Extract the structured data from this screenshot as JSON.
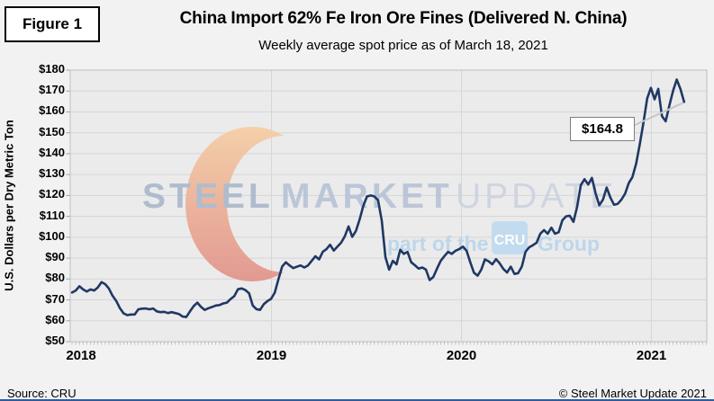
{
  "figure_label": "Figure 1",
  "header": {
    "title": "China Import 62% Fe Iron Ore Fines (Delivered N. China)",
    "subtitle": "Weekly average spot price as of March 18, 2021"
  },
  "annotation": {
    "label": "$164.8"
  },
  "watermark": {
    "steel": "STEEL",
    "market": "MARKET",
    "update": "UPDATE",
    "part_of_the": "part of the",
    "cru": "CRU",
    "group": "Group"
  },
  "footer": {
    "source": "Source: CRU",
    "copyright": "© Steel Market Update 2021"
  },
  "colors": {
    "page_bg": "#F2F2F2",
    "plot_bg": "#EBEBEB",
    "grid": "#D6D6D6",
    "plot_border": "#BFBFBF",
    "line": "#1F3864",
    "y_tick_marks": "#8FA5C6",
    "x_tick_marks": "#A9B6C6",
    "leader": "#C6C6C6",
    "annotation_border": "#7F7F7F",
    "crescent_top": "#F6CFA3",
    "crescent_bottom": "#E18E87",
    "wm_steel": "#A9B7CB",
    "wm_market": "#B6C2D6",
    "wm_update": "#CBD3DF",
    "wm_blue": "#B9D4EC",
    "cru_box": "#BFDAF0",
    "bottom_bar": "#2E5B9E"
  },
  "chart_data": {
    "type": "line",
    "title": "China Import 62% Fe Iron Ore Fines (Delivered N. China)",
    "subtitle": "Weekly average spot price as of March 18, 2021",
    "ylabel": "U.S. Dollars per Dry Metric Ton",
    "xlabel": "",
    "ylim": [
      50,
      180
    ],
    "y_tick_step": 10,
    "y_tick_prefix": "$",
    "y_tick_labels": [
      "$180",
      "$170",
      "$160",
      "$150",
      "$140",
      "$130",
      "$120",
      "$110",
      "$100",
      "$90",
      "$80",
      "$70",
      "$60",
      "$50"
    ],
    "x_tick_labels": [
      "2018",
      "2019",
      "2020",
      "2021"
    ],
    "x_unit": "weeks, Jan 2018 - Mar 18 2021",
    "grid": true,
    "legend": false,
    "last_value": 164.8,
    "last_point_label": "$164.8",
    "series": [
      {
        "name": "Weekly average spot price ($/dry metric ton)",
        "values": [
          73.5,
          74.5,
          76.5,
          75.0,
          74.0,
          75.0,
          74.5,
          76.0,
          78.5,
          77.5,
          75.5,
          72.0,
          69.5,
          66.0,
          63.5,
          62.7,
          63.0,
          63.0,
          65.5,
          65.8,
          65.9,
          65.5,
          65.9,
          64.5,
          64.1,
          64.3,
          63.7,
          64.1,
          63.7,
          63.2,
          62.0,
          61.8,
          64.5,
          67.0,
          68.7,
          66.6,
          65.2,
          66.0,
          66.6,
          67.3,
          67.5,
          68.3,
          68.7,
          70.4,
          71.8,
          75.1,
          75.5,
          74.7,
          73.2,
          67.3,
          65.6,
          65.2,
          67.9,
          69.4,
          70.5,
          73.5,
          80.0,
          86.0,
          88.0,
          86.5,
          85.2,
          85.9,
          86.5,
          85.5,
          86.5,
          88.7,
          90.9,
          89.4,
          93.0,
          94.3,
          96.4,
          93.6,
          95.5,
          97.4,
          100.5,
          105.2,
          100.2,
          103.0,
          108.5,
          115.0,
          119.5,
          120.0,
          119.5,
          117.7,
          108.0,
          90.4,
          84.5,
          88.7,
          87.0,
          94.0,
          92.0,
          93.0,
          88.0,
          86.6,
          85.0,
          85.5,
          84.5,
          79.5,
          81.0,
          85.0,
          88.7,
          91.0,
          93.0,
          92.0,
          93.5,
          94.3,
          95.5,
          93.5,
          88.0,
          83.0,
          81.6,
          84.5,
          89.4,
          88.5,
          87.0,
          89.5,
          87.5,
          84.8,
          83.1,
          85.9,
          82.4,
          82.8,
          86.0,
          93.1,
          95.2,
          96.2,
          97.4,
          101.7,
          103.4,
          101.7,
          104.6,
          101.7,
          102.4,
          108.1,
          110.0,
          110.3,
          107.4,
          114.6,
          125.0,
          127.8,
          125.2,
          128.4,
          121.0,
          115.3,
          118.0,
          123.8,
          119.0,
          115.5,
          116.0,
          118.0,
          120.9,
          125.9,
          128.8,
          135.2,
          144.6,
          155.0,
          166.5,
          171.5,
          166.0,
          171.0,
          158.0,
          155.5,
          163.0,
          170.0,
          175.5,
          171.0,
          164.8
        ]
      }
    ]
  }
}
